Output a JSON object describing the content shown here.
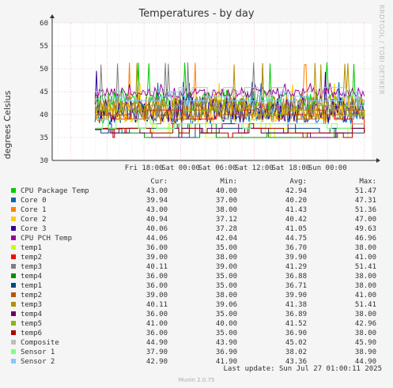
{
  "chart_data": {
    "type": "line",
    "title": "Temperatures - by day",
    "ylabel": "degrees Celsius",
    "ylim": [
      30,
      60
    ],
    "y_ticks": [
      30,
      35,
      40,
      45,
      50,
      55,
      60
    ],
    "x_ticks": [
      "Fri 18:00",
      "Sat 00:00",
      "Sat 06:00",
      "Sat 12:00",
      "Sat 18:00",
      "Sun 00:00"
    ],
    "x_range_hours": [
      -21,
      31.2
    ],
    "grid": true,
    "legend_columns": [
      "Cur:",
      "Min:",
      "Avg:",
      "Max:"
    ],
    "series": [
      {
        "name": "CPU Package Temp",
        "color": "#00cc00",
        "cur": "43.00",
        "min": "40.00",
        "avg": "42.94",
        "max": "51.47"
      },
      {
        "name": "Core 0",
        "color": "#0066b3",
        "cur": "39.94",
        "min": "37.00",
        "avg": "40.20",
        "max": "47.31"
      },
      {
        "name": "Core 1",
        "color": "#ff8000",
        "cur": "43.00",
        "min": "38.00",
        "avg": "41.43",
        "max": "51.36"
      },
      {
        "name": "Core 2",
        "color": "#ffcc00",
        "cur": "40.94",
        "min": "37.12",
        "avg": "40.42",
        "max": "47.00"
      },
      {
        "name": "Core 3",
        "color": "#330099",
        "cur": "40.06",
        "min": "37.28",
        "avg": "41.05",
        "max": "49.63"
      },
      {
        "name": "CPU PCH Temp",
        "color": "#990099",
        "cur": "44.06",
        "min": "42.04",
        "avg": "44.75",
        "max": "46.96"
      },
      {
        "name": "temp1",
        "color": "#ccff00",
        "cur": "36.00",
        "min": "35.00",
        "avg": "36.70",
        "max": "38.00"
      },
      {
        "name": "temp2",
        "color": "#ff0000",
        "cur": "39.00",
        "min": "38.00",
        "avg": "39.90",
        "max": "41.00"
      },
      {
        "name": "temp3",
        "color": "#808080",
        "cur": "40.11",
        "min": "39.00",
        "avg": "41.29",
        "max": "51.41"
      },
      {
        "name": "temp4",
        "color": "#008f00",
        "cur": "36.00",
        "min": "35.00",
        "avg": "36.88",
        "max": "38.00"
      },
      {
        "name": "temp1",
        "color": "#00487d",
        "cur": "36.00",
        "min": "35.00",
        "avg": "36.71",
        "max": "38.00"
      },
      {
        "name": "temp2",
        "color": "#b35a00",
        "cur": "39.00",
        "min": "38.00",
        "avg": "39.90",
        "max": "41.00"
      },
      {
        "name": "temp3",
        "color": "#b38f00",
        "cur": "40.11",
        "min": "39.06",
        "avg": "41.38",
        "max": "51.41"
      },
      {
        "name": "temp4",
        "color": "#6b006b",
        "cur": "36.00",
        "min": "35.00",
        "avg": "36.89",
        "max": "38.00"
      },
      {
        "name": "temp5",
        "color": "#8fb300",
        "cur": "41.00",
        "min": "40.00",
        "avg": "41.52",
        "max": "42.96"
      },
      {
        "name": "temp6",
        "color": "#b30000",
        "cur": "36.00",
        "min": "35.00",
        "avg": "36.90",
        "max": "38.00"
      },
      {
        "name": "Composite",
        "color": "#bebebe",
        "cur": "44.90",
        "min": "43.90",
        "avg": "45.02",
        "max": "45.90"
      },
      {
        "name": "Sensor 1",
        "color": "#80ff80",
        "cur": "37.90",
        "min": "36.90",
        "avg": "38.02",
        "max": "38.90"
      },
      {
        "name": "Sensor 2",
        "color": "#80c9ff",
        "cur": "42.90",
        "min": "41.90",
        "avg": "43.36",
        "max": "44.90"
      }
    ]
  },
  "footer": {
    "last_update": "Last update: Sun Jul 27 01:00:11 2025",
    "munin": "Munin 2.0.75"
  },
  "watermark": "RRDTOOL / TOBI OETIKER"
}
